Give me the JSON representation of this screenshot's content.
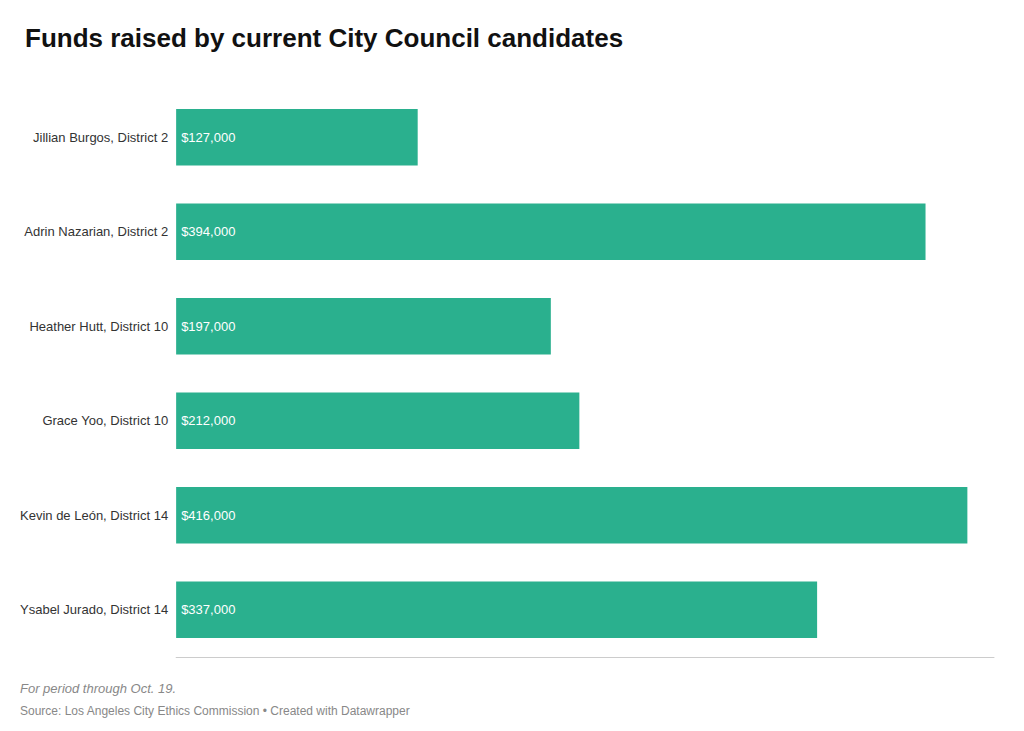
{
  "chart_data": {
    "type": "bar",
    "orientation": "horizontal",
    "title": "Funds raised by current City Council candidates",
    "categories": [
      "Jillian Burgos, District 2",
      "Adrin Nazarian, District 2",
      "Heather Hutt, District 10",
      "Grace Yoo, District 10",
      "Kevin de León, District 14",
      "Ysabel Jurado, District 14"
    ],
    "values": [
      127000,
      394000,
      197000,
      212000,
      416000,
      337000
    ],
    "value_labels": [
      "$127,000",
      "$394,000",
      "$197,000",
      "$212,000",
      "$416,000",
      "$337,000"
    ],
    "data_labels": true,
    "color": "#2ab08e",
    "xlim": [
      0,
      430000
    ],
    "grid": false,
    "tick_labels": "y",
    "annotations": [
      "For period through Oct. 19.",
      "Source: Los Angeles City Ethics Commission • Created with Datawrapper"
    ]
  }
}
